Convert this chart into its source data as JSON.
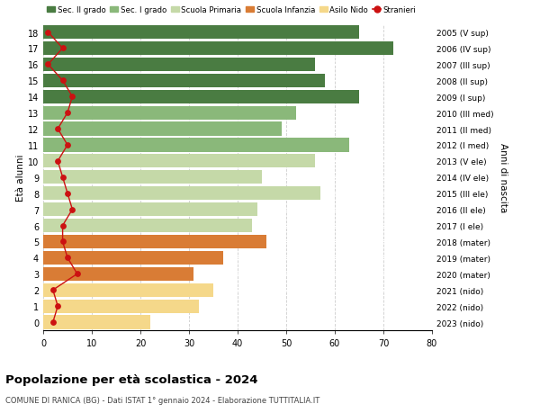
{
  "ages": [
    18,
    17,
    16,
    15,
    14,
    13,
    12,
    11,
    10,
    9,
    8,
    7,
    6,
    5,
    4,
    3,
    2,
    1,
    0
  ],
  "right_labels": [
    "2005 (V sup)",
    "2006 (IV sup)",
    "2007 (III sup)",
    "2008 (II sup)",
    "2009 (I sup)",
    "2010 (III med)",
    "2011 (II med)",
    "2012 (I med)",
    "2013 (V ele)",
    "2014 (IV ele)",
    "2015 (III ele)",
    "2016 (II ele)",
    "2017 (I ele)",
    "2018 (mater)",
    "2019 (mater)",
    "2020 (mater)",
    "2021 (nido)",
    "2022 (nido)",
    "2023 (nido)"
  ],
  "bar_values": [
    65,
    72,
    56,
    58,
    65,
    52,
    49,
    63,
    56,
    45,
    57,
    44,
    43,
    46,
    37,
    31,
    35,
    32,
    22
  ],
  "bar_colors": [
    "#4a7c42",
    "#4a7c42",
    "#4a7c42",
    "#4a7c42",
    "#4a7c42",
    "#8ab87a",
    "#8ab87a",
    "#8ab87a",
    "#c5d9a8",
    "#c5d9a8",
    "#c5d9a8",
    "#c5d9a8",
    "#c5d9a8",
    "#d97c35",
    "#d97c35",
    "#d97c35",
    "#f5d88a",
    "#f5d88a",
    "#f5d88a"
  ],
  "stranieri_values": [
    1,
    4,
    1,
    4,
    6,
    5,
    3,
    5,
    3,
    4,
    5,
    6,
    4,
    4,
    5,
    7,
    2,
    3,
    2
  ],
  "legend_labels": [
    "Sec. II grado",
    "Sec. I grado",
    "Scuola Primaria",
    "Scuola Infanzia",
    "Asilo Nido",
    "Stranieri"
  ],
  "legend_colors": [
    "#4a7c42",
    "#8ab87a",
    "#c5d9a8",
    "#d97c35",
    "#f5d88a",
    "#cc1111"
  ],
  "title": "Popolazione per età scolastica - 2024",
  "subtitle": "COMUNE DI RANICA (BG) - Dati ISTAT 1° gennaio 2024 - Elaborazione TUTTITALIA.IT",
  "ylabel_left": "Età alunni",
  "ylabel_right": "Anni di nascita",
  "xlim": [
    0,
    80
  ],
  "xticks": [
    0,
    10,
    20,
    30,
    40,
    50,
    60,
    70,
    80
  ],
  "bg_color": "#ffffff",
  "grid_color": "#cccccc"
}
